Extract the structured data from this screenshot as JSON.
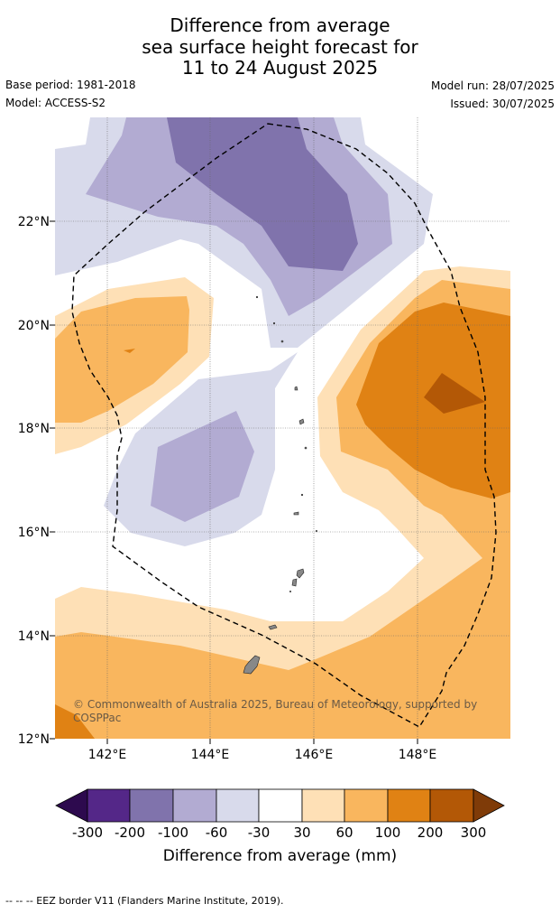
{
  "title": {
    "line1": "Difference from average",
    "line2": "sea surface height forecast for",
    "line3": "11 to 24 August 2025"
  },
  "meta": {
    "base_period": "Base period: 1981-2018",
    "model": "Model: ACCESS-S2",
    "model_run": "Model run: 28/07/2025",
    "issued": "Issued: 30/07/2025"
  },
  "map": {
    "lat_labels": [
      "22°N",
      "20°N",
      "18°N",
      "16°N",
      "14°N",
      "12°N"
    ],
    "lon_labels": [
      "142°E",
      "144°E",
      "146°E",
      "148°E"
    ],
    "copyright": "© Commonwealth of Australia 2025, Bureau of Meteorology, supported by COSPPac",
    "colors": {
      "m300": "#2d0a4e",
      "m200": "#542788",
      "m100": "#8073ac",
      "m60": "#b2abd2",
      "m30": "#d8daeb",
      "zero": "#ffffff",
      "p30": "#fee0b6",
      "p60": "#f9b65e",
      "p100": "#e08214",
      "p200": "#b35806",
      "p300": "#7f3b08",
      "land": "#888888",
      "eez": "#000000"
    }
  },
  "colorbar": {
    "ticks": [
      "-300",
      "-200",
      "-100",
      "-60",
      "-30",
      "30",
      "60",
      "100",
      "200",
      "300"
    ],
    "label": "Difference from average (mm)"
  },
  "footer": "-- -- -- EEZ border V11 (Flanders Marine Institute, 2019)."
}
